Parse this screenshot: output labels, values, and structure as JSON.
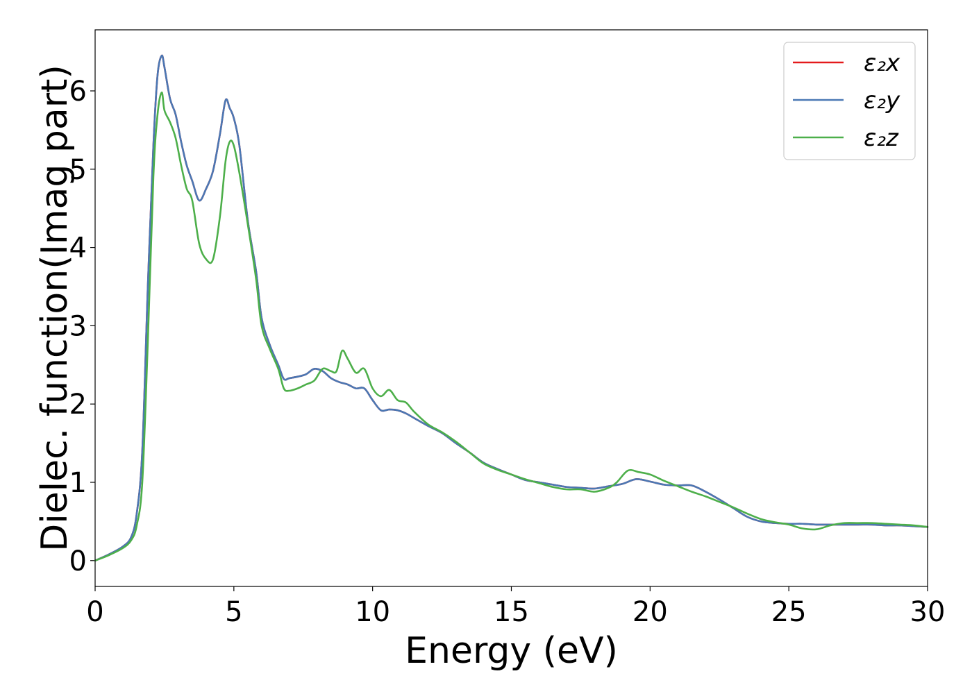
{
  "chart_data": {
    "type": "line",
    "title": "",
    "xlabel": "Energy (eV)",
    "ylabel": "Dielec. function(Imag part)",
    "xlim": [
      0,
      30
    ],
    "ylim": [
      -0.33,
      6.78
    ],
    "xticks": [
      0,
      5,
      10,
      15,
      20,
      25,
      30
    ],
    "yticks": [
      0,
      1,
      2,
      3,
      4,
      5,
      6
    ],
    "grid": false,
    "legend_position": "top-right",
    "series": [
      {
        "name": "ε₂x",
        "color": "#e41a1c",
        "x": [
          0,
          0.5,
          1.0,
          1.3,
          1.5,
          1.7,
          1.9,
          2.1,
          2.25,
          2.4,
          2.5,
          2.7,
          2.9,
          3.1,
          3.3,
          3.5,
          3.75,
          4.0,
          4.25,
          4.5,
          4.7,
          4.85,
          5.0,
          5.2,
          5.5,
          5.8,
          6.0,
          6.3,
          6.6,
          6.8,
          7.0,
          7.3,
          7.6,
          7.9,
          8.2,
          8.5,
          8.8,
          9.1,
          9.4,
          9.7,
          10.0,
          10.3,
          10.6,
          10.9,
          11.2,
          11.5,
          12.0,
          12.5,
          13.0,
          13.5,
          14.0,
          14.5,
          15.0,
          15.5,
          16.0,
          16.5,
          17.0,
          17.5,
          18.0,
          18.5,
          19.0,
          19.5,
          20.0,
          20.5,
          21.0,
          21.5,
          22.0,
          22.5,
          23.0,
          23.5,
          24.0,
          24.5,
          25.0,
          25.5,
          26.0,
          26.5,
          27.0,
          27.5,
          28.0,
          28.5,
          29.0,
          29.5,
          30.0
        ],
        "y": [
          0,
          0.08,
          0.18,
          0.3,
          0.6,
          1.4,
          3.5,
          5.3,
          6.2,
          6.45,
          6.3,
          5.9,
          5.7,
          5.35,
          5.05,
          4.85,
          4.6,
          4.75,
          4.98,
          5.45,
          5.88,
          5.78,
          5.65,
          5.3,
          4.35,
          3.7,
          3.1,
          2.75,
          2.5,
          2.32,
          2.33,
          2.35,
          2.38,
          2.45,
          2.42,
          2.33,
          2.28,
          2.25,
          2.2,
          2.2,
          2.05,
          1.92,
          1.93,
          1.92,
          1.88,
          1.82,
          1.72,
          1.63,
          1.5,
          1.38,
          1.25,
          1.17,
          1.1,
          1.03,
          1.0,
          0.97,
          0.94,
          0.93,
          0.92,
          0.95,
          0.98,
          1.04,
          1.01,
          0.97,
          0.96,
          0.96,
          0.88,
          0.78,
          0.67,
          0.56,
          0.5,
          0.48,
          0.47,
          0.47,
          0.46,
          0.46,
          0.46,
          0.46,
          0.46,
          0.45,
          0.45,
          0.44,
          0.43
        ]
      },
      {
        "name": "ε₂y",
        "color": "#4a78b4",
        "x": [
          0,
          0.5,
          1.0,
          1.3,
          1.5,
          1.7,
          1.9,
          2.1,
          2.25,
          2.4,
          2.5,
          2.7,
          2.9,
          3.1,
          3.3,
          3.5,
          3.75,
          4.0,
          4.25,
          4.5,
          4.7,
          4.85,
          5.0,
          5.2,
          5.5,
          5.8,
          6.0,
          6.3,
          6.6,
          6.8,
          7.0,
          7.3,
          7.6,
          7.9,
          8.2,
          8.5,
          8.8,
          9.1,
          9.4,
          9.7,
          10.0,
          10.3,
          10.6,
          10.9,
          11.2,
          11.5,
          12.0,
          12.5,
          13.0,
          13.5,
          14.0,
          14.5,
          15.0,
          15.5,
          16.0,
          16.5,
          17.0,
          17.5,
          18.0,
          18.5,
          19.0,
          19.5,
          20.0,
          20.5,
          21.0,
          21.5,
          22.0,
          22.5,
          23.0,
          23.5,
          24.0,
          24.5,
          25.0,
          25.5,
          26.0,
          26.5,
          27.0,
          27.5,
          28.0,
          28.5,
          29.0,
          29.5,
          30.0
        ],
        "y": [
          0,
          0.08,
          0.18,
          0.3,
          0.6,
          1.4,
          3.5,
          5.3,
          6.2,
          6.45,
          6.3,
          5.9,
          5.7,
          5.35,
          5.05,
          4.85,
          4.6,
          4.75,
          4.98,
          5.45,
          5.88,
          5.78,
          5.65,
          5.3,
          4.35,
          3.7,
          3.1,
          2.75,
          2.5,
          2.32,
          2.33,
          2.35,
          2.38,
          2.45,
          2.42,
          2.33,
          2.28,
          2.25,
          2.2,
          2.2,
          2.05,
          1.92,
          1.93,
          1.92,
          1.88,
          1.82,
          1.72,
          1.63,
          1.5,
          1.38,
          1.25,
          1.17,
          1.1,
          1.03,
          1.0,
          0.97,
          0.94,
          0.93,
          0.92,
          0.95,
          0.98,
          1.04,
          1.01,
          0.97,
          0.96,
          0.96,
          0.88,
          0.78,
          0.67,
          0.56,
          0.5,
          0.48,
          0.47,
          0.47,
          0.46,
          0.46,
          0.46,
          0.46,
          0.46,
          0.45,
          0.45,
          0.44,
          0.43
        ]
      },
      {
        "name": "ε₂z",
        "color": "#4daf4a",
        "x": [
          0,
          0.5,
          1.0,
          1.3,
          1.5,
          1.7,
          1.9,
          2.1,
          2.25,
          2.4,
          2.5,
          2.7,
          2.9,
          3.1,
          3.3,
          3.5,
          3.75,
          4.0,
          4.25,
          4.5,
          4.7,
          4.85,
          5.0,
          5.2,
          5.5,
          5.8,
          6.0,
          6.3,
          6.6,
          6.8,
          7.0,
          7.3,
          7.6,
          7.9,
          8.2,
          8.5,
          8.7,
          8.9,
          9.1,
          9.4,
          9.7,
          10.0,
          10.3,
          10.6,
          10.9,
          11.2,
          11.5,
          12.0,
          12.5,
          13.0,
          13.5,
          14.0,
          14.5,
          15.0,
          15.5,
          16.0,
          16.5,
          17.0,
          17.5,
          18.0,
          18.5,
          18.8,
          19.2,
          19.6,
          20.0,
          20.5,
          21.0,
          21.5,
          22.0,
          22.5,
          23.0,
          23.5,
          24.0,
          24.5,
          25.0,
          25.5,
          26.0,
          26.5,
          27.0,
          27.5,
          28.0,
          28.5,
          29.0,
          29.5,
          30.0
        ],
        "y": [
          0,
          0.07,
          0.16,
          0.26,
          0.45,
          1.0,
          2.8,
          4.9,
          5.7,
          5.98,
          5.75,
          5.6,
          5.4,
          5.05,
          4.75,
          4.6,
          4.05,
          3.85,
          3.85,
          4.4,
          5.1,
          5.35,
          5.3,
          4.95,
          4.3,
          3.6,
          3.0,
          2.7,
          2.45,
          2.2,
          2.17,
          2.2,
          2.25,
          2.3,
          2.45,
          2.42,
          2.42,
          2.68,
          2.58,
          2.4,
          2.45,
          2.2,
          2.1,
          2.18,
          2.05,
          2.02,
          1.9,
          1.74,
          1.64,
          1.52,
          1.38,
          1.24,
          1.16,
          1.1,
          1.04,
          0.99,
          0.94,
          0.91,
          0.91,
          0.88,
          0.93,
          1.0,
          1.15,
          1.13,
          1.1,
          1.02,
          0.95,
          0.88,
          0.82,
          0.75,
          0.68,
          0.6,
          0.53,
          0.49,
          0.46,
          0.41,
          0.4,
          0.45,
          0.48,
          0.48,
          0.48,
          0.47,
          0.46,
          0.45,
          0.43
        ]
      }
    ]
  }
}
